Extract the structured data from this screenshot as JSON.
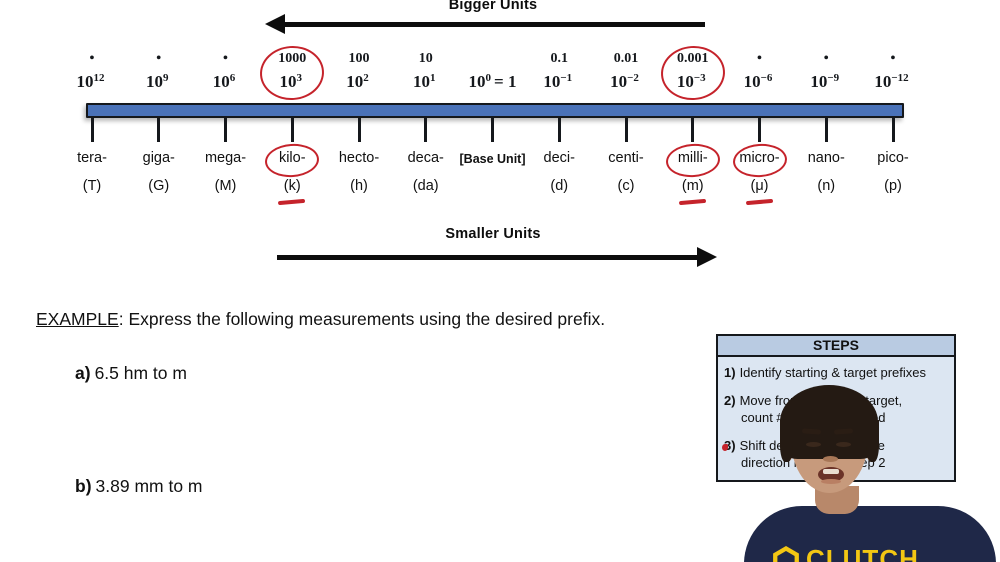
{
  "header": {
    "bigger_label": "Bigger Units",
    "smaller_label": "Smaller Units"
  },
  "scale": {
    "entries": [
      {
        "above": "•",
        "base": "10",
        "exp": "12",
        "suffix": "",
        "prefix": "tera-",
        "symbol": "(T)",
        "base_unit": false,
        "circle_power": false,
        "circle_prefix": false,
        "underline_symbol": false
      },
      {
        "above": "•",
        "base": "10",
        "exp": "9",
        "suffix": "",
        "prefix": "giga-",
        "symbol": "(G)",
        "base_unit": false,
        "circle_power": false,
        "circle_prefix": false,
        "underline_symbol": false
      },
      {
        "above": "•",
        "base": "10",
        "exp": "6",
        "suffix": "",
        "prefix": "mega-",
        "symbol": "(M)",
        "base_unit": false,
        "circle_power": false,
        "circle_prefix": false,
        "underline_symbol": false
      },
      {
        "above": "1000",
        "base": "10",
        "exp": "3",
        "suffix": "",
        "prefix": "kilo-",
        "symbol": "(k)",
        "base_unit": false,
        "circle_power": true,
        "circle_prefix": true,
        "underline_symbol": true
      },
      {
        "above": "100",
        "base": "10",
        "exp": "2",
        "suffix": "",
        "prefix": "hecto-",
        "symbol": "(h)",
        "base_unit": false,
        "circle_power": false,
        "circle_prefix": false,
        "underline_symbol": false
      },
      {
        "above": "10",
        "base": "10",
        "exp": "1",
        "suffix": "",
        "prefix": "deca-",
        "symbol": "(da)",
        "base_unit": false,
        "circle_power": false,
        "circle_prefix": false,
        "underline_symbol": false
      },
      {
        "above": "",
        "base": "10",
        "exp": "0",
        "suffix": "= 1",
        "prefix": "[Base Unit]",
        "symbol": "",
        "base_unit": true,
        "circle_power": false,
        "circle_prefix": false,
        "underline_symbol": false
      },
      {
        "above": "0.1",
        "base": "10",
        "exp": "−1",
        "suffix": "",
        "prefix": "deci-",
        "symbol": "(d)",
        "base_unit": false,
        "circle_power": false,
        "circle_prefix": false,
        "underline_symbol": false
      },
      {
        "above": "0.01",
        "base": "10",
        "exp": "−2",
        "suffix": "",
        "prefix": "centi-",
        "symbol": "(c)",
        "base_unit": false,
        "circle_power": false,
        "circle_prefix": false,
        "underline_symbol": false
      },
      {
        "above": "0.001",
        "base": "10",
        "exp": "−3",
        "suffix": "",
        "prefix": "milli-",
        "symbol": "(m)",
        "base_unit": false,
        "circle_power": true,
        "circle_prefix": true,
        "underline_symbol": true
      },
      {
        "above": "•",
        "base": "10",
        "exp": "−6",
        "suffix": "",
        "prefix": "micro-",
        "symbol": "(μ)",
        "base_unit": false,
        "circle_power": false,
        "circle_prefix": true,
        "underline_symbol": true
      },
      {
        "above": "•",
        "base": "10",
        "exp": "−9",
        "suffix": "",
        "prefix": "nano-",
        "symbol": "(n)",
        "base_unit": false,
        "circle_power": false,
        "circle_prefix": false,
        "underline_symbol": false
      },
      {
        "above": "•",
        "base": "10",
        "exp": "−12",
        "suffix": "",
        "prefix": "pico-",
        "symbol": "(p)",
        "base_unit": false,
        "circle_power": false,
        "circle_prefix": false,
        "underline_symbol": false
      }
    ]
  },
  "example": {
    "label": "EXAMPLE",
    "colon": ":",
    "text": "Express the following measurements using the desired prefix.",
    "items": [
      {
        "num": "a)",
        "text": "6.5 hm to m"
      },
      {
        "num": "b)",
        "text": "3.89 mm to m"
      }
    ]
  },
  "steps": {
    "title": "STEPS",
    "items": [
      {
        "num": "1)",
        "line1": "Identify starting & target prefixes",
        "line2": "",
        "marked": false
      },
      {
        "num": "2)",
        "line1": "Move from starting to target,",
        "line2": "count # of spaces moved",
        "marked": false
      },
      {
        "num": "3)",
        "line1": "Shift decimal in the same",
        "line2": "direction moved in step 2",
        "marked": true
      }
    ]
  },
  "presenter": {
    "shirt_text": "CLUTCH"
  },
  "colors": {
    "annotation_red": "#c5232b",
    "bar_blue": "#4a72b8",
    "steps_header_bg": "#b9cbe2",
    "steps_body_bg": "#dce6f2",
    "shirt_navy": "#1f2848",
    "logo_yellow": "#f3c713"
  }
}
